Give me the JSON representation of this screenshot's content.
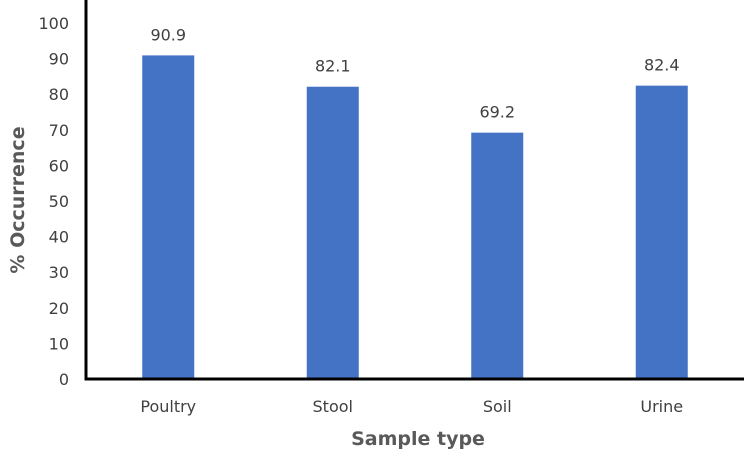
{
  "chart_data": {
    "type": "bar",
    "categories": [
      "Poultry",
      "Stool",
      "Soil",
      "Urine"
    ],
    "values": [
      90.9,
      82.1,
      69.2,
      82.4
    ],
    "data_labels": [
      "90.9",
      "82.1",
      "69.2",
      "82.4"
    ],
    "xlabel": "Sample type",
    "ylabel": "% Occurrence",
    "ylim": [
      0,
      100
    ],
    "yticks": [
      "0",
      "10",
      "20",
      "30",
      "40",
      "50",
      "60",
      "70",
      "80",
      "90",
      "100"
    ],
    "grid": false,
    "legend": "none",
    "bar_color": "#4472C4",
    "axis_color": "#000000"
  }
}
